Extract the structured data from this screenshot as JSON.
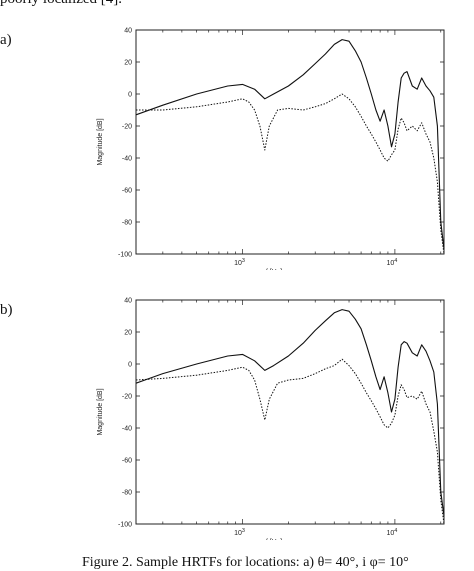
{
  "text_above": "poorly localized [4].",
  "panel_labels": [
    "a)",
    "b)"
  ],
  "caption": "Figure 2.  Sample HRTFs for locations: a) θ= 40°, i φ= 10°",
  "colors": {
    "line": "#111111",
    "frame": "#222222",
    "background": "#ffffff"
  },
  "chart_data": [
    {
      "type": "line",
      "panel": "a)",
      "xlabel": "f [Hz]",
      "ylabel": "Magnitude [dB]",
      "x_scale": "log",
      "xlim": [
        200,
        21000
      ],
      "ylim": [
        -100,
        40
      ],
      "yticks": [
        40,
        20,
        0,
        -20,
        -40,
        -60,
        -80,
        -100
      ],
      "xticks": [
        {
          "value": 1000,
          "base": "10",
          "exp": "3"
        },
        {
          "value": 10000,
          "base": "10",
          "exp": "4"
        }
      ],
      "grid": false,
      "series": [
        {
          "style": "solid",
          "x": [
            200,
            300,
            500,
            800,
            1000,
            1200,
            1400,
            1600,
            2000,
            2500,
            3000,
            3500,
            4000,
            4500,
            5000,
            5500,
            6000,
            6500,
            7000,
            7500,
            8000,
            8500,
            9000,
            9500,
            10000,
            10500,
            11000,
            11500,
            12000,
            13000,
            14000,
            15000,
            16000,
            17000,
            18000,
            19000,
            20000,
            21000
          ],
          "y": [
            -13,
            -7,
            0,
            5,
            6,
            3,
            -3,
            0,
            5,
            12,
            19,
            25,
            31,
            34,
            33,
            27,
            20,
            10,
            0,
            -10,
            -17,
            -10,
            -20,
            -33,
            -25,
            -5,
            10,
            13,
            14,
            5,
            3,
            10,
            5,
            2,
            -2,
            -20,
            -80,
            -97
          ]
        },
        {
          "style": "dotted",
          "x": [
            200,
            300,
            500,
            800,
            1000,
            1100,
            1200,
            1300,
            1400,
            1500,
            1700,
            2000,
            2500,
            3000,
            3500,
            4000,
            4500,
            5000,
            5500,
            6000,
            6500,
            7000,
            7500,
            8000,
            8500,
            9000,
            9500,
            10000,
            10500,
            11000,
            11500,
            12000,
            13000,
            14000,
            15000,
            16000,
            17000,
            18000,
            19000,
            20000,
            21000
          ],
          "y": [
            -10,
            -10,
            -8,
            -5,
            -3,
            -5,
            -10,
            -20,
            -35,
            -20,
            -10,
            -9,
            -10,
            -8,
            -6,
            -3,
            0,
            -3,
            -8,
            -14,
            -20,
            -25,
            -30,
            -35,
            -40,
            -42,
            -38,
            -35,
            -22,
            -15,
            -18,
            -23,
            -20,
            -23,
            -18,
            -25,
            -30,
            -40,
            -55,
            -85,
            -100
          ]
        }
      ]
    },
    {
      "type": "line",
      "panel": "b)",
      "xlabel": "f [Hz]",
      "ylabel": "Magnitude [dB]",
      "x_scale": "log",
      "xlim": [
        200,
        21000
      ],
      "ylim": [
        -100,
        40
      ],
      "yticks": [
        40,
        20,
        0,
        -20,
        -40,
        -60,
        -80,
        -100
      ],
      "xticks": [
        {
          "value": 1000,
          "base": "10",
          "exp": "3"
        },
        {
          "value": 10000,
          "base": "10",
          "exp": "4"
        }
      ],
      "grid": false,
      "series": [
        {
          "style": "solid",
          "x": [
            200,
            300,
            500,
            800,
            1000,
            1200,
            1400,
            1600,
            2000,
            2500,
            3000,
            3500,
            4000,
            4500,
            5000,
            5500,
            6000,
            6500,
            7000,
            7500,
            8000,
            8500,
            9000,
            9500,
            10000,
            10500,
            11000,
            11500,
            12000,
            13000,
            14000,
            15000,
            16000,
            17000,
            18000,
            19000,
            20000,
            21000
          ],
          "y": [
            -12,
            -6,
            0,
            5,
            6,
            2,
            -4,
            -1,
            5,
            13,
            21,
            27,
            32,
            34,
            33,
            28,
            22,
            12,
            2,
            -8,
            -16,
            -8,
            -18,
            -30,
            -22,
            -2,
            12,
            14,
            13,
            7,
            5,
            12,
            8,
            2,
            -5,
            -25,
            -80,
            -95
          ]
        },
        {
          "style": "dotted",
          "x": [
            200,
            300,
            500,
            800,
            1000,
            1100,
            1200,
            1300,
            1400,
            1500,
            1700,
            2000,
            2500,
            3000,
            3500,
            4000,
            4500,
            5000,
            5500,
            6000,
            6500,
            7000,
            7500,
            8000,
            8500,
            9000,
            9500,
            10000,
            10500,
            11000,
            11500,
            12000,
            13000,
            14000,
            15000,
            16000,
            17000,
            18000,
            19000,
            20000,
            21000
          ],
          "y": [
            -10,
            -9,
            -7,
            -4,
            -2,
            -4,
            -10,
            -22,
            -35,
            -22,
            -12,
            -10,
            -9,
            -6,
            -3,
            -1,
            3,
            -1,
            -6,
            -12,
            -18,
            -23,
            -28,
            -33,
            -38,
            -40,
            -37,
            -32,
            -20,
            -13,
            -16,
            -21,
            -20,
            -22,
            -17,
            -25,
            -30,
            -42,
            -55,
            -85,
            -100
          ]
        }
      ]
    }
  ]
}
